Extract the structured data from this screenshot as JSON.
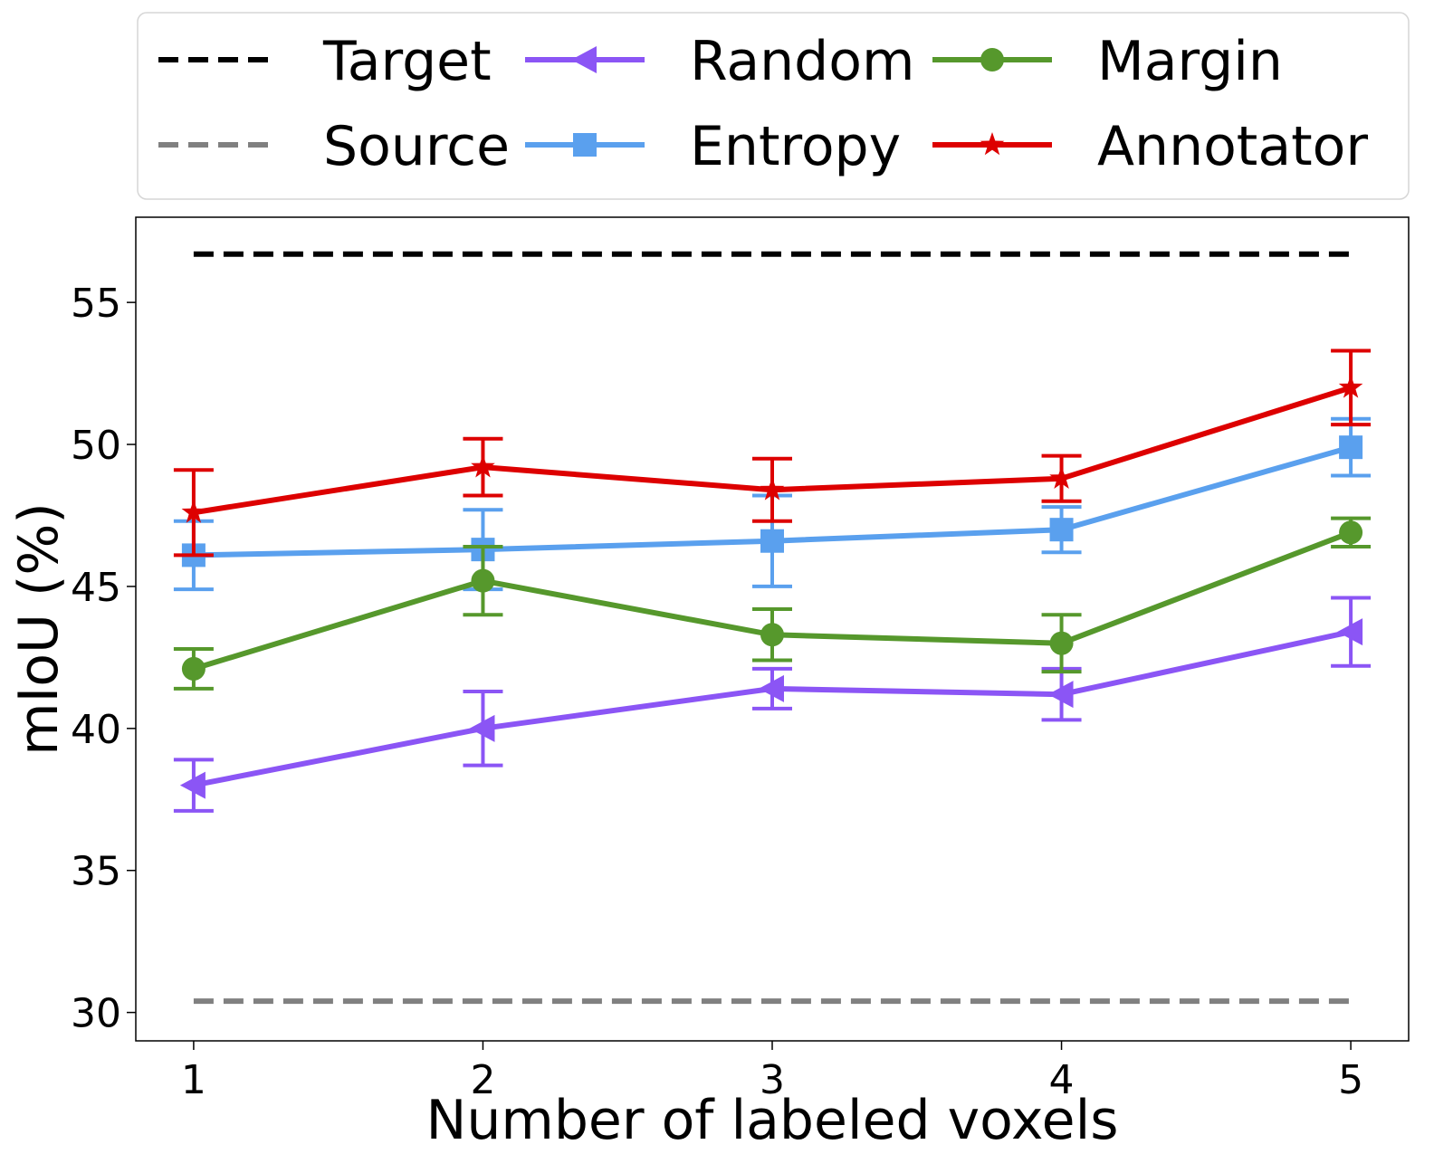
{
  "chart_data": {
    "type": "line",
    "title": "",
    "xlabel": "Number of labeled voxels",
    "ylabel": "mIoU (%)",
    "x": [
      1,
      2,
      3,
      4,
      5
    ],
    "xlim": [
      0.8,
      5.2
    ],
    "ylim": [
      29,
      58
    ],
    "xticks": [
      1,
      2,
      3,
      4,
      5
    ],
    "yticks": [
      30,
      35,
      40,
      45,
      50,
      55
    ],
    "grid": false,
    "legend_position": "top, outside plot",
    "reference_lines": [
      {
        "name": "Target",
        "value": 56.7,
        "color": "#000000",
        "style": "dashed"
      },
      {
        "name": "Source",
        "value": 30.4,
        "color": "#808080",
        "style": "dashed"
      }
    ],
    "series": [
      {
        "name": "Random",
        "color": "#8b55f5",
        "marker": "triangle-left",
        "values": [
          38.0,
          40.0,
          41.4,
          41.2,
          43.4
        ],
        "errors": [
          0.9,
          1.3,
          0.7,
          0.9,
          1.2
        ]
      },
      {
        "name": "Entropy",
        "color": "#5aa0ee",
        "marker": "square",
        "values": [
          46.1,
          46.3,
          46.6,
          47.0,
          49.9
        ],
        "errors": [
          1.2,
          1.4,
          1.6,
          0.8,
          1.0
        ]
      },
      {
        "name": "Margin",
        "color": "#56982c",
        "marker": "circle",
        "values": [
          42.1,
          45.2,
          43.3,
          43.0,
          46.9
        ],
        "errors": [
          0.7,
          1.2,
          0.9,
          1.0,
          0.5
        ]
      },
      {
        "name": "Annotator",
        "color": "#dd0000",
        "marker": "star",
        "values": [
          47.6,
          49.2,
          48.4,
          48.8,
          52.0
        ],
        "errors": [
          1.5,
          1.0,
          1.1,
          0.8,
          1.3
        ]
      }
    ]
  }
}
